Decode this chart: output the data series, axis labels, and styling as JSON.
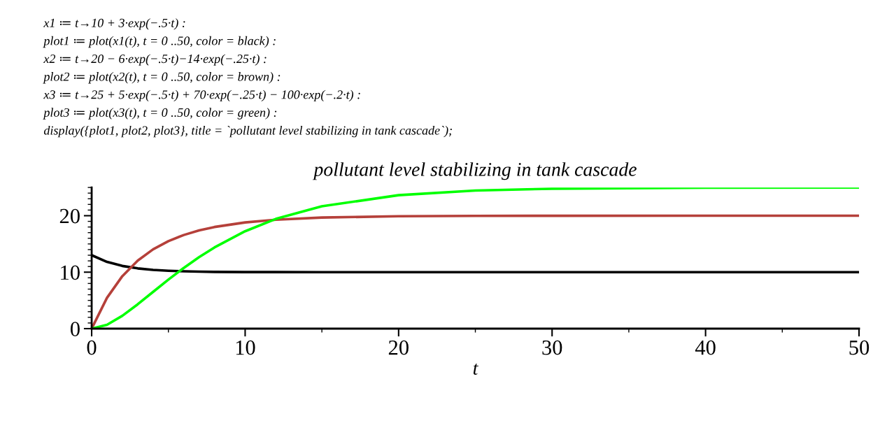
{
  "chart_data": {
    "type": "line",
    "title": "pollutant level stabilizing in tank cascade",
    "xlabel": "t",
    "annotations": [
      "x1 ≔ t→10 + 3·exp(−.5·t) :",
      "plot1 ≔ plot(x1(t), t = 0 ..50, color = black) :",
      "x2 ≔ t→20 − 6·exp(−.5·t)−14·exp(−.25·t) :",
      "plot2 ≔ plot(x2(t), t = 0 ..50, color = brown) :",
      "x3 ≔ t→25 + 5·exp(−.5·t) + 70·exp(−.25·t) − 100·exp(−.2·t) :",
      "plot3 ≔ plot(x3(t), t = 0 ..50, color = green) :",
      "display({plot1, plot2, plot3}, title = `pollutant level stabilizing in tank cascade`);"
    ],
    "x": [
      0,
      1,
      2,
      3,
      4,
      5,
      6,
      7,
      8,
      10,
      12,
      15,
      20,
      25,
      30,
      40,
      50
    ],
    "series": [
      {
        "color": "#000000",
        "values": [
          13,
          11.82,
          11.1,
          10.67,
          10.41,
          10.25,
          10.15,
          10.09,
          10.05,
          10.02,
          10.01,
          10,
          10,
          10,
          10,
          10,
          10
        ]
      },
      {
        "color": "#b5403a",
        "values": [
          0,
          5.46,
          9.3,
          12.05,
          14.04,
          15.5,
          16.58,
          17.39,
          18,
          18.81,
          19.29,
          19.67,
          19.91,
          19.97,
          19.99,
          20,
          20
        ]
      },
      {
        "color": "#00ff00",
        "values": [
          0,
          0.68,
          2.27,
          4.31,
          6.5,
          8.68,
          10.75,
          12.66,
          14.37,
          17.25,
          19.43,
          21.67,
          23.64,
          24.46,
          24.79,
          24.97,
          25
        ]
      }
    ],
    "xlim": [
      0,
      50
    ],
    "ylim": [
      0,
      25
    ],
    "xticks": [
      0,
      10,
      20,
      30,
      40,
      50
    ],
    "yticks": [
      0,
      10,
      20
    ],
    "grid": false,
    "legend": false,
    "marker": "none",
    "line_style": "solid"
  }
}
